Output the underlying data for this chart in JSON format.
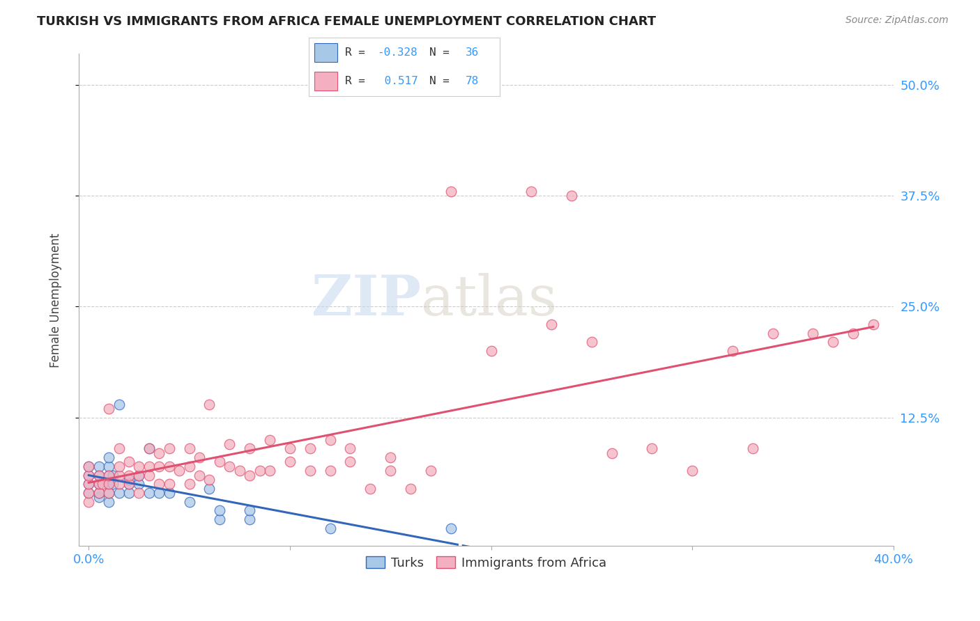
{
  "title": "TURKISH VS IMMIGRANTS FROM AFRICA FEMALE UNEMPLOYMENT CORRELATION CHART",
  "source": "Source: ZipAtlas.com",
  "ylabel": "Female Unemployment",
  "ytick_labels": [
    "50.0%",
    "37.5%",
    "25.0%",
    "12.5%"
  ],
  "ytick_values": [
    0.5,
    0.375,
    0.25,
    0.125
  ],
  "xlim": [
    -0.005,
    0.4
  ],
  "ylim": [
    -0.02,
    0.535
  ],
  "turks_color": "#a8c8e8",
  "africa_color": "#f4b0c0",
  "turks_line_color": "#3366bb",
  "africa_line_color": "#e05070",
  "legend_label_turks": "Turks",
  "legend_label_africa": "Immigrants from Africa",
  "watermark_zip": "ZIP",
  "watermark_atlas": "atlas",
  "turks_x": [
    0.0,
    0.0,
    0.0,
    0.0,
    0.005,
    0.005,
    0.005,
    0.005,
    0.005,
    0.01,
    0.01,
    0.01,
    0.01,
    0.01,
    0.01,
    0.012,
    0.012,
    0.015,
    0.015,
    0.02,
    0.02,
    0.02,
    0.025,
    0.025,
    0.03,
    0.03,
    0.035,
    0.04,
    0.05,
    0.06,
    0.065,
    0.065,
    0.08,
    0.08,
    0.12,
    0.18
  ],
  "turks_y": [
    0.04,
    0.05,
    0.06,
    0.07,
    0.035,
    0.04,
    0.05,
    0.06,
    0.07,
    0.03,
    0.04,
    0.05,
    0.06,
    0.07,
    0.08,
    0.05,
    0.06,
    0.04,
    0.14,
    0.04,
    0.05,
    0.055,
    0.05,
    0.06,
    0.04,
    0.09,
    0.04,
    0.04,
    0.03,
    0.045,
    0.01,
    0.02,
    0.01,
    0.02,
    0.0,
    0.0
  ],
  "africa_x": [
    0.0,
    0.0,
    0.0,
    0.0,
    0.0,
    0.005,
    0.005,
    0.005,
    0.007,
    0.01,
    0.01,
    0.01,
    0.01,
    0.015,
    0.015,
    0.015,
    0.015,
    0.02,
    0.02,
    0.02,
    0.025,
    0.025,
    0.025,
    0.03,
    0.03,
    0.03,
    0.035,
    0.035,
    0.035,
    0.04,
    0.04,
    0.04,
    0.045,
    0.05,
    0.05,
    0.05,
    0.055,
    0.055,
    0.06,
    0.06,
    0.065,
    0.07,
    0.07,
    0.075,
    0.08,
    0.08,
    0.085,
    0.09,
    0.09,
    0.1,
    0.1,
    0.11,
    0.11,
    0.12,
    0.12,
    0.13,
    0.13,
    0.14,
    0.15,
    0.15,
    0.16,
    0.17,
    0.18,
    0.2,
    0.22,
    0.23,
    0.24,
    0.25,
    0.26,
    0.28,
    0.3,
    0.32,
    0.33,
    0.34,
    0.36,
    0.37,
    0.38,
    0.39
  ],
  "africa_y": [
    0.03,
    0.04,
    0.05,
    0.06,
    0.07,
    0.04,
    0.05,
    0.06,
    0.05,
    0.04,
    0.05,
    0.06,
    0.135,
    0.05,
    0.06,
    0.07,
    0.09,
    0.05,
    0.06,
    0.075,
    0.04,
    0.06,
    0.07,
    0.06,
    0.07,
    0.09,
    0.05,
    0.07,
    0.085,
    0.05,
    0.07,
    0.09,
    0.065,
    0.05,
    0.07,
    0.09,
    0.06,
    0.08,
    0.055,
    0.14,
    0.075,
    0.07,
    0.095,
    0.065,
    0.06,
    0.09,
    0.065,
    0.065,
    0.1,
    0.075,
    0.09,
    0.065,
    0.09,
    0.065,
    0.1,
    0.075,
    0.09,
    0.045,
    0.065,
    0.08,
    0.045,
    0.065,
    0.38,
    0.2,
    0.38,
    0.23,
    0.375,
    0.21,
    0.085,
    0.09,
    0.065,
    0.2,
    0.09,
    0.22,
    0.22,
    0.21,
    0.22,
    0.23
  ]
}
